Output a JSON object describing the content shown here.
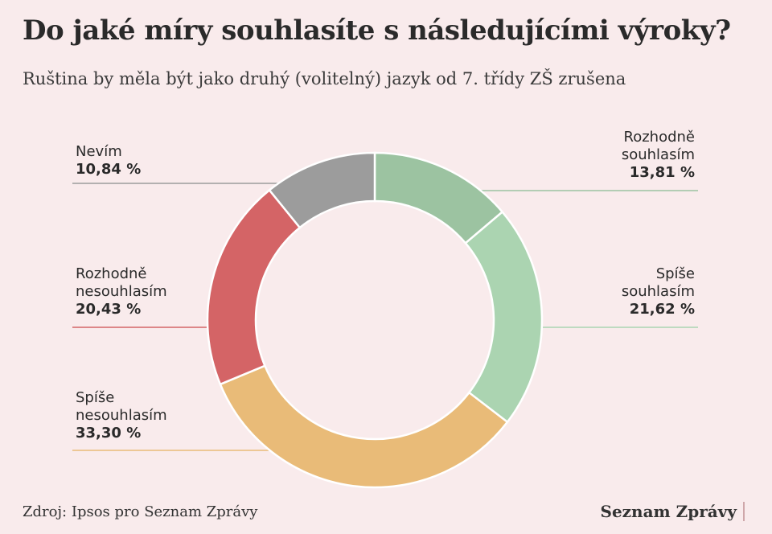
{
  "title": "Do jaké míry souhlasíte s následujícími výroky?",
  "subtitle": "Ruština by měla být jako druhý (volitelný) jazyk od 7. třídy ZŠ zrušena",
  "source": "Zdroj: Ipsos pro Seznam Zprávy",
  "brand": "Seznam Zprávy",
  "chart_data": {
    "type": "pie",
    "variant": "donut",
    "title": "Do jaké míry souhlasíte s následujícími výroky?",
    "subtitle": "Ruština by měla být jako druhý (volitelný) jazyk od 7. třídy ZŠ zrušena",
    "slices": [
      {
        "label_lines": [
          "Rozhodně",
          "souhlasím"
        ],
        "value": 13.81,
        "value_label": "13,81 %",
        "color": "#9cc3a1"
      },
      {
        "label_lines": [
          "Spíše",
          "souhlasím"
        ],
        "value": 21.62,
        "value_label": "21,62 %",
        "color": "#abd4b1"
      },
      {
        "label_lines": [
          "Spíše",
          "nesouhlasím"
        ],
        "value": 33.3,
        "value_label": "33,30 %",
        "color": "#e9bb78"
      },
      {
        "label_lines": [
          "Rozhodně",
          "nesouhlasím"
        ],
        "value": 20.43,
        "value_label": "20,43 %",
        "color": "#d46466"
      },
      {
        "label_lines": [
          "Nevím"
        ],
        "value": 10.84,
        "value_label": "10,84 %",
        "color": "#9c9c9c"
      }
    ]
  }
}
